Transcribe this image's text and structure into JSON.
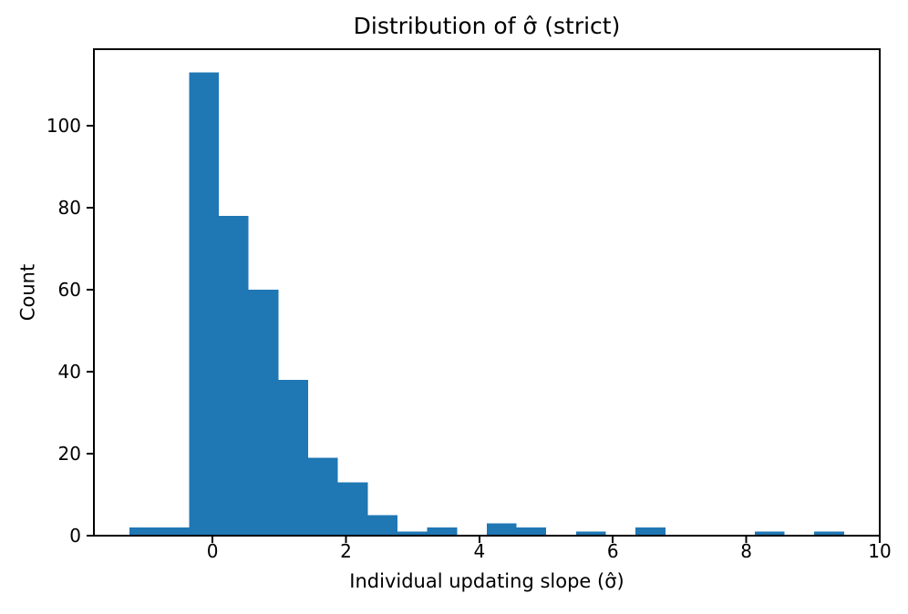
{
  "figure": {
    "title": "Distribution of σ̂ (strict)",
    "xlabel": "Individual updating slope (σ̂)",
    "ylabel": "Count"
  },
  "chart_data": {
    "type": "bar",
    "subtype": "histogram",
    "title": "Distribution of σ̂ (strict)",
    "xlabel": "Individual updating slope (σ̂)",
    "ylabel": "Count",
    "bar_color": "#1f77b4",
    "axis_color": "#000000",
    "background_color": "#ffffff",
    "bin_edges": [
      -1.2435,
      -0.7973,
      -0.3512,
      0.095,
      0.5412,
      0.9873,
      1.4335,
      1.8797,
      2.3258,
      2.772,
      3.2182,
      3.6643,
      4.1105,
      4.5567,
      5.0028,
      5.449,
      5.8952,
      6.3413,
      6.7875,
      7.2337,
      7.6798,
      8.126,
      8.5722,
      9.0183,
      9.4645
    ],
    "counts": [
      2,
      2,
      113,
      78,
      60,
      38,
      19,
      13,
      5,
      1,
      2,
      0,
      3,
      2,
      0,
      1,
      0,
      2,
      0,
      0,
      0,
      1,
      0,
      1
    ],
    "xlim": [
      -1.777,
      10.0
    ],
    "ylim": [
      0,
      118.65
    ],
    "xticks": [
      0,
      2,
      4,
      6,
      8,
      10
    ],
    "xtick_labels": [
      "0",
      "2",
      "4",
      "6",
      "8",
      "10"
    ],
    "yticks": [
      0,
      20,
      40,
      60,
      80,
      100
    ],
    "ytick_labels": [
      "0",
      "20",
      "40",
      "60",
      "80",
      "100"
    ],
    "grid": false,
    "legend": null
  }
}
